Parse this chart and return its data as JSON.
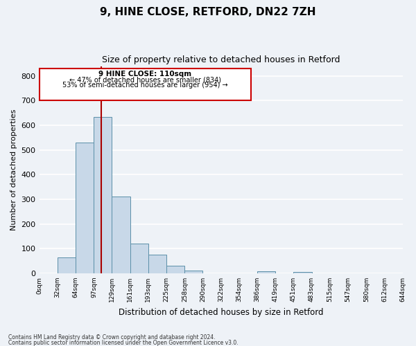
{
  "title": "9, HINE CLOSE, RETFORD, DN22 7ZH",
  "subtitle": "Size of property relative to detached houses in Retford",
  "xlabel": "Distribution of detached houses by size in Retford",
  "ylabel": "Number of detached properties",
  "bar_edges": [
    0,
    32,
    64,
    97,
    129,
    161,
    193,
    225,
    258,
    290,
    322,
    354,
    386,
    419,
    451,
    483,
    515,
    547,
    580,
    612,
    644
  ],
  "bar_heights": [
    0,
    65,
    530,
    635,
    310,
    120,
    75,
    30,
    12,
    0,
    0,
    0,
    8,
    0,
    5,
    0,
    0,
    0,
    0,
    0
  ],
  "bar_color": "#c8d8e8",
  "bar_edge_color": "#5b8fa8",
  "ylim": [
    0,
    840
  ],
  "yticks": [
    0,
    100,
    200,
    300,
    400,
    500,
    600,
    700,
    800
  ],
  "x_tick_labels": [
    "0sqm",
    "32sqm",
    "64sqm",
    "97sqm",
    "129sqm",
    "161sqm",
    "193sqm",
    "225sqm",
    "258sqm",
    "290sqm",
    "322sqm",
    "354sqm",
    "386sqm",
    "419sqm",
    "451sqm",
    "483sqm",
    "515sqm",
    "547sqm",
    "580sqm",
    "612sqm",
    "644sqm"
  ],
  "property_size": 110,
  "vline_color": "#aa0000",
  "annotation_title": "9 HINE CLOSE: 110sqm",
  "annotation_line1": "← 47% of detached houses are smaller (834)",
  "annotation_line2": "53% of semi-detached houses are larger (954) →",
  "annotation_box_color": "#ffffff",
  "annotation_box_edge": "#cc0000",
  "footer_line1": "Contains HM Land Registry data © Crown copyright and database right 2024.",
  "footer_line2": "Contains public sector information licensed under the Open Government Licence v3.0.",
  "background_color": "#eef2f7",
  "grid_color": "#ffffff",
  "title_fontsize": 11,
  "subtitle_fontsize": 9
}
